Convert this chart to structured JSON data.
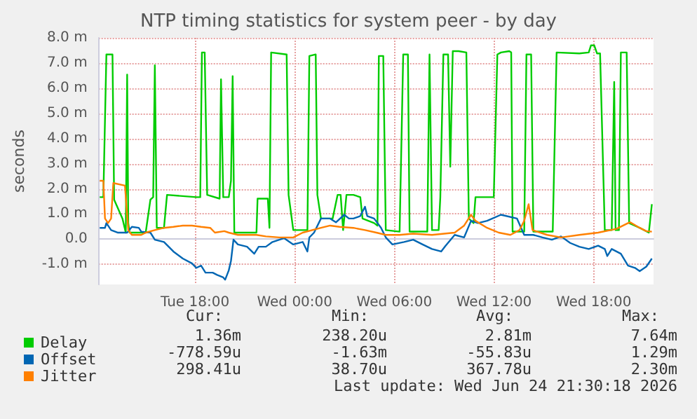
{
  "chart_data": {
    "type": "line",
    "title": "NTP timing statistics for system peer - by day",
    "ylabel": "seconds",
    "xlim": [
      "2026-06-23T12:12",
      "2026-06-24T21:36"
    ],
    "xticks": [
      {
        "value": "2026-06-23T18:00",
        "label": "Tue 18:00"
      },
      {
        "value": "2026-06-24T00:00",
        "label": "Wed 00:00"
      },
      {
        "value": "2026-06-24T06:00",
        "label": "Wed 06:00"
      },
      {
        "value": "2026-06-24T12:00",
        "label": "Wed 12:00"
      },
      {
        "value": "2026-06-24T18:00",
        "label": "Wed 18:00"
      }
    ],
    "ylim": [
      -1.8,
      8.0
    ],
    "yticks": [
      {
        "value": -1,
        "label": "-1.0 m"
      },
      {
        "value": 0,
        "label": "0.0"
      },
      {
        "value": 1,
        "label": "1.0 m"
      },
      {
        "value": 2,
        "label": "2.0 m"
      },
      {
        "value": 3,
        "label": "3.0 m"
      },
      {
        "value": 4,
        "label": "4.0 m"
      },
      {
        "value": 5,
        "label": "5.0 m"
      },
      {
        "value": 6,
        "label": "6.0 m"
      },
      {
        "value": 7,
        "label": "7.0 m"
      },
      {
        "value": 8,
        "label": "8.0 m"
      }
    ],
    "grid": true,
    "legend": "bottom",
    "line_style": "solid",
    "series": [
      {
        "name": "Delay",
        "color": "#00cc00",
        "x": [
          "2026-06-23T12:16",
          "2026-06-23T12:29",
          "2026-06-23T12:40",
          "2026-06-23T13:02",
          "2026-06-23T13:08",
          "2026-06-23T13:38",
          "2026-06-23T13:50",
          "2026-06-23T13:55",
          "2026-06-23T13:59",
          "2026-06-23T14:04",
          "2026-06-23T15:02",
          "2026-06-23T15:19",
          "2026-06-23T15:29",
          "2026-06-23T15:35",
          "2026-06-23T15:42",
          "2026-06-23T16:08",
          "2026-06-23T16:19",
          "2026-06-23T18:05",
          "2026-06-23T18:19",
          "2026-06-23T18:25",
          "2026-06-23T18:35",
          "2026-06-23T18:44",
          "2026-06-23T19:29",
          "2026-06-23T19:34",
          "2026-06-23T19:42",
          "2026-06-23T20:02",
          "2026-06-23T20:10",
          "2026-06-23T20:16",
          "2026-06-23T20:22",
          "2026-06-23T21:42",
          "2026-06-23T21:46",
          "2026-06-23T22:23",
          "2026-06-23T22:29",
          "2026-06-23T22:35",
          "2026-06-23T23:31",
          "2026-06-23T23:38",
          "2026-06-23T23:55",
          "2026-06-24T00:46",
          "2026-06-24T00:53",
          "2026-06-24T01:16",
          "2026-06-24T01:22",
          "2026-06-24T01:35",
          "2026-06-24T02:17",
          "2026-06-24T02:35",
          "2026-06-24T02:46",
          "2026-06-24T02:55",
          "2026-06-24T03:07",
          "2026-06-24T03:32",
          "2026-06-24T03:57",
          "2026-06-24T04:05",
          "2026-06-24T04:47",
          "2026-06-24T04:59",
          "2026-06-24T05:04",
          "2026-06-24T05:20",
          "2026-06-24T05:29",
          "2026-06-24T06:19",
          "2026-06-24T06:32",
          "2026-06-24T06:49",
          "2026-06-24T06:55",
          "2026-06-24T07:59",
          "2026-06-24T08:07",
          "2026-06-24T08:16",
          "2026-06-24T08:40",
          "2026-06-24T08:46",
          "2026-06-24T08:57",
          "2026-06-24T09:14",
          "2026-06-24T09:22",
          "2026-06-24T09:31",
          "2026-06-24T09:52",
          "2026-06-24T10:20",
          "2026-06-24T10:29",
          "2026-06-24T10:46",
          "2026-06-24T10:53",
          "2026-06-24T11:59",
          "2026-06-24T12:12",
          "2026-06-24T12:25",
          "2026-06-24T12:55",
          "2026-06-24T13:02",
          "2026-06-24T13:07",
          "2026-06-24T13:49",
          "2026-06-24T13:57",
          "2026-06-24T14:14",
          "2026-06-24T14:22",
          "2026-06-24T15:32",
          "2026-06-24T15:46",
          "2026-06-24T17:08",
          "2026-06-24T17:42",
          "2026-06-24T17:50",
          "2026-06-24T18:02",
          "2026-06-24T18:12",
          "2026-06-24T18:23",
          "2026-06-24T18:40",
          "2026-06-24T19:05",
          "2026-06-24T19:14",
          "2026-06-24T19:19",
          "2026-06-24T19:31",
          "2026-06-24T19:38",
          "2026-06-24T19:59",
          "2026-06-24T20:08",
          "2026-06-24T20:46",
          "2026-06-24T21:19",
          "2026-06-24T21:30"
        ],
        "values": [
          1.67,
          1.67,
          7.34,
          7.34,
          1.57,
          0.82,
          0.26,
          6.54,
          0.64,
          0.26,
          0.26,
          1.57,
          1.67,
          6.91,
          0.45,
          0.45,
          1.76,
          1.67,
          1.67,
          7.42,
          7.42,
          1.76,
          1.61,
          6.35,
          1.67,
          1.67,
          2.32,
          6.48,
          0.26,
          0.26,
          1.61,
          1.61,
          0.45,
          7.42,
          7.34,
          1.76,
          0.36,
          0.36,
          7.28,
          7.34,
          1.76,
          0.82,
          0.82,
          1.76,
          1.76,
          0.36,
          1.76,
          1.76,
          1.67,
          0.82,
          0.64,
          0.54,
          7.28,
          7.28,
          0.36,
          0.3,
          7.34,
          7.34,
          0.3,
          0.3,
          7.34,
          0.36,
          0.36,
          1.67,
          7.34,
          7.34,
          2.88,
          7.47,
          7.47,
          7.42,
          0.82,
          0.64,
          1.67,
          1.67,
          7.34,
          7.42,
          7.47,
          7.42,
          0.3,
          0.3,
          7.34,
          7.34,
          0.3,
          0.3,
          7.42,
          7.38,
          7.42,
          7.7,
          7.7,
          7.38,
          7.38,
          0.36,
          0.36,
          6.25,
          0.36,
          0.36,
          7.42,
          7.42,
          0.64,
          0.45,
          0.26,
          1.39
        ]
      },
      {
        "name": "Offset",
        "color": "#0066b3",
        "x": [
          "2026-06-23T12:16",
          "2026-06-23T12:35",
          "2026-06-23T12:40",
          "2026-06-23T12:57",
          "2026-06-23T13:22",
          "2026-06-23T13:55",
          "2026-06-23T14:12",
          "2026-06-23T14:37",
          "2026-06-23T14:46",
          "2026-06-23T15:19",
          "2026-06-23T15:35",
          "2026-06-23T16:08",
          "2026-06-23T16:42",
          "2026-06-23T17:16",
          "2026-06-23T17:49",
          "2026-06-23T18:05",
          "2026-06-23T18:22",
          "2026-06-23T18:38",
          "2026-06-23T19:04",
          "2026-06-23T19:20",
          "2026-06-23T19:42",
          "2026-06-23T19:49",
          "2026-06-23T20:02",
          "2026-06-23T20:10",
          "2026-06-23T20:19",
          "2026-06-23T20:35",
          "2026-06-23T21:08",
          "2026-06-23T21:34",
          "2026-06-23T21:50",
          "2026-06-23T22:16",
          "2026-06-23T22:40",
          "2026-06-23T23:22",
          "2026-06-23T23:55",
          "2026-06-24T00:29",
          "2026-06-24T00:46",
          "2026-06-24T00:53",
          "2026-06-24T01:10",
          "2026-06-24T01:35",
          "2026-06-24T02:08",
          "2026-06-24T02:29",
          "2026-06-24T02:59",
          "2026-06-24T03:16",
          "2026-06-24T03:32",
          "2026-06-24T03:57",
          "2026-06-24T04:14",
          "2026-06-24T04:22",
          "2026-06-24T04:47",
          "2026-06-24T05:12",
          "2026-06-24T05:29",
          "2026-06-24T05:53",
          "2026-06-24T06:35",
          "2026-06-24T07:08",
          "2026-06-24T07:42",
          "2026-06-24T08:16",
          "2026-06-24T08:49",
          "2026-06-24T09:05",
          "2026-06-24T09:38",
          "2026-06-24T10:12",
          "2026-06-24T10:37",
          "2026-06-24T11:02",
          "2026-06-24T11:35",
          "2026-06-24T12:25",
          "2026-06-24T13:23",
          "2026-06-24T13:49",
          "2026-06-24T14:22",
          "2026-06-24T14:55",
          "2026-06-24T15:29",
          "2026-06-24T16:02",
          "2026-06-24T16:35",
          "2026-06-24T17:08",
          "2026-06-24T17:42",
          "2026-06-24T18:16",
          "2026-06-24T18:40",
          "2026-06-24T18:49",
          "2026-06-24T19:05",
          "2026-06-24T19:38",
          "2026-06-24T20:04",
          "2026-06-24T20:29",
          "2026-06-24T20:46",
          "2026-06-24T21:10",
          "2026-06-24T21:30"
        ],
        "values": [
          0.45,
          0.45,
          0.64,
          0.36,
          0.26,
          0.26,
          0.49,
          0.45,
          0.3,
          0.26,
          -0.02,
          -0.11,
          -0.49,
          -0.77,
          -0.96,
          -1.14,
          -1.05,
          -1.33,
          -1.33,
          -1.42,
          -1.52,
          -1.61,
          -1.24,
          -0.86,
          -0.02,
          -0.21,
          -0.3,
          -0.58,
          -0.3,
          -0.3,
          -0.11,
          0.04,
          -0.21,
          -0.11,
          -0.49,
          0.07,
          0.26,
          0.82,
          0.82,
          0.67,
          0.97,
          0.82,
          0.82,
          0.92,
          1.29,
          0.92,
          0.82,
          0.45,
          0.07,
          -0.21,
          -0.11,
          -0.02,
          -0.21,
          -0.39,
          -0.49,
          -0.26,
          0.17,
          0.07,
          0.73,
          0.64,
          0.73,
          0.97,
          0.82,
          0.17,
          0.17,
          0.07,
          -0.02,
          0.11,
          -0.15,
          -0.3,
          -0.39,
          -0.26,
          -0.39,
          -0.67,
          -0.39,
          -0.58,
          -1.05,
          -1.14,
          -1.27,
          -1.09,
          -0.77
        ]
      },
      {
        "name": "Jitter",
        "color": "#ff8000",
        "x": [
          "2026-06-23T12:16",
          "2026-06-23T12:29",
          "2026-06-23T12:35",
          "2026-06-23T12:46",
          "2026-06-23T12:57",
          "2026-06-23T13:05",
          "2026-06-23T13:47",
          "2026-06-23T13:59",
          "2026-06-23T14:12",
          "2026-06-23T14:46",
          "2026-06-23T15:02",
          "2026-06-23T15:35",
          "2026-06-23T16:08",
          "2026-06-23T16:42",
          "2026-06-23T17:16",
          "2026-06-23T17:49",
          "2026-06-23T18:22",
          "2026-06-23T18:55",
          "2026-06-23T19:12",
          "2026-06-23T19:46",
          "2026-06-23T20:02",
          "2026-06-23T20:35",
          "2026-06-23T21:42",
          "2026-06-23T22:16",
          "2026-06-23T23:05",
          "2026-06-23T23:55",
          "2026-06-24T00:29",
          "2026-06-24T01:35",
          "2026-06-24T02:08",
          "2026-06-24T02:42",
          "2026-06-24T03:32",
          "2026-06-24T04:14",
          "2026-06-24T04:55",
          "2026-06-24T05:29",
          "2026-06-24T06:19",
          "2026-06-24T07:08",
          "2026-06-24T08:16",
          "2026-06-24T09:38",
          "2026-06-24T10:12",
          "2026-06-24T10:37",
          "2026-06-24T10:53",
          "2026-06-24T11:35",
          "2026-06-24T12:17",
          "2026-06-24T12:59",
          "2026-06-24T13:32",
          "2026-06-24T13:49",
          "2026-06-24T14:05",
          "2026-06-24T14:19",
          "2026-06-24T15:12",
          "2026-06-24T16:02",
          "2026-06-24T17:08",
          "2026-06-24T18:16",
          "2026-06-24T19:22",
          "2026-06-24T20:04",
          "2026-06-24T20:12",
          "2026-06-24T20:46",
          "2026-06-24T21:10",
          "2026-06-24T21:30"
        ],
        "values": [
          2.32,
          2.32,
          0.82,
          0.64,
          0.82,
          2.23,
          2.13,
          0.36,
          0.17,
          0.17,
          0.26,
          0.36,
          0.45,
          0.49,
          0.54,
          0.54,
          0.49,
          0.45,
          0.26,
          0.32,
          0.26,
          0.17,
          0.17,
          0.11,
          0.07,
          0.07,
          0.26,
          0.45,
          0.54,
          0.49,
          0.45,
          0.36,
          0.26,
          0.17,
          0.17,
          0.22,
          0.17,
          0.26,
          0.54,
          0.97,
          0.73,
          0.45,
          0.26,
          0.17,
          0.36,
          0.73,
          1.39,
          0.36,
          0.17,
          0.07,
          0.17,
          0.26,
          0.41,
          0.64,
          0.67,
          0.45,
          0.32,
          0.3
        ]
      }
    ],
    "annotations": [
      "Cur:",
      "Min:",
      "Avg:",
      "Max:",
      "1.36m",
      "238.20u",
      "2.81m",
      "7.64m",
      "-778.59u",
      "-1.63m",
      "-55.83u",
      "1.29m",
      "298.41u",
      "38.70u",
      "367.78u",
      "2.30m",
      "Last update: Wed Jun 24 21:30:18 2026"
    ]
  }
}
